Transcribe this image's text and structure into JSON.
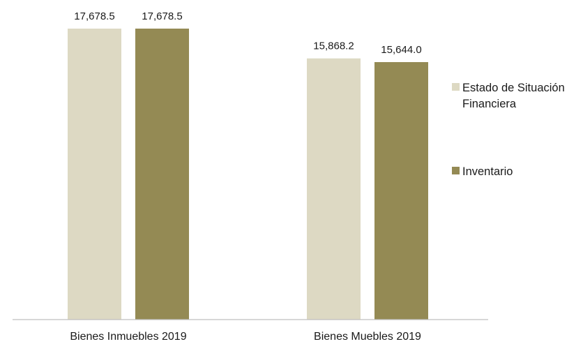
{
  "chart_data": {
    "type": "bar",
    "title": "",
    "xlabel": "",
    "ylabel": "",
    "categories": [
      "Bienes Inmuebles 2019",
      "Bienes Muebles 2019"
    ],
    "series": [
      {
        "name": "Estado de Situación Financiera",
        "legend_lines": [
          "Estado de Situación",
          "Financiera"
        ],
        "color": "#ddd9c3",
        "values": [
          17678.5,
          15868.2
        ],
        "labels": [
          "17,678.5",
          "15,868.2"
        ]
      },
      {
        "name": "Inventario",
        "legend_lines": [
          "Inventario"
        ],
        "color": "#948a54",
        "values": [
          17678.5,
          15644.0
        ],
        "labels": [
          "17,678.5",
          "15,644.0"
        ]
      }
    ],
    "ylim": [
      0,
      17678.5
    ],
    "grid": false,
    "legend_position": "right",
    "axis_color": "#bfbfbf"
  }
}
